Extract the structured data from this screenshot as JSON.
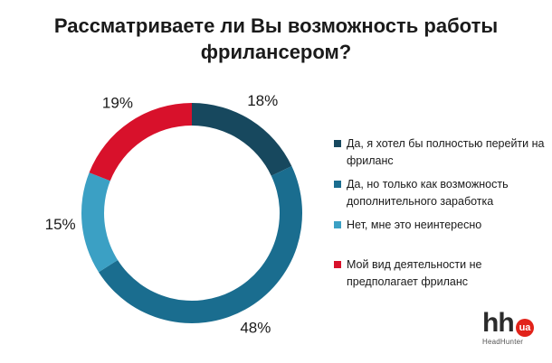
{
  "chart_data": {
    "type": "pie",
    "title_lines": [
      "Рассматриваете ли Вы возможность работы",
      "фрилансером?"
    ],
    "categories": [
      "Да, я хотел бы полностью перейти на фриланс",
      "Да, но только как возможность дополнительного заработка",
      "Нет, мне это неинтересно",
      "Мой вид деятельности не предполагает фриланс"
    ],
    "values": [
      18,
      48,
      15,
      19
    ],
    "value_labels": [
      "18%",
      "48%",
      "15%",
      "19%"
    ],
    "colors": [
      "#17485e",
      "#1a6d8f",
      "#3ba0c4",
      "#d8112b"
    ],
    "legend_position": "right",
    "donut": true
  },
  "branding": {
    "logo_text": "hh",
    "logo_badge": "ua",
    "logo_subtitle": "HeadHunter"
  }
}
